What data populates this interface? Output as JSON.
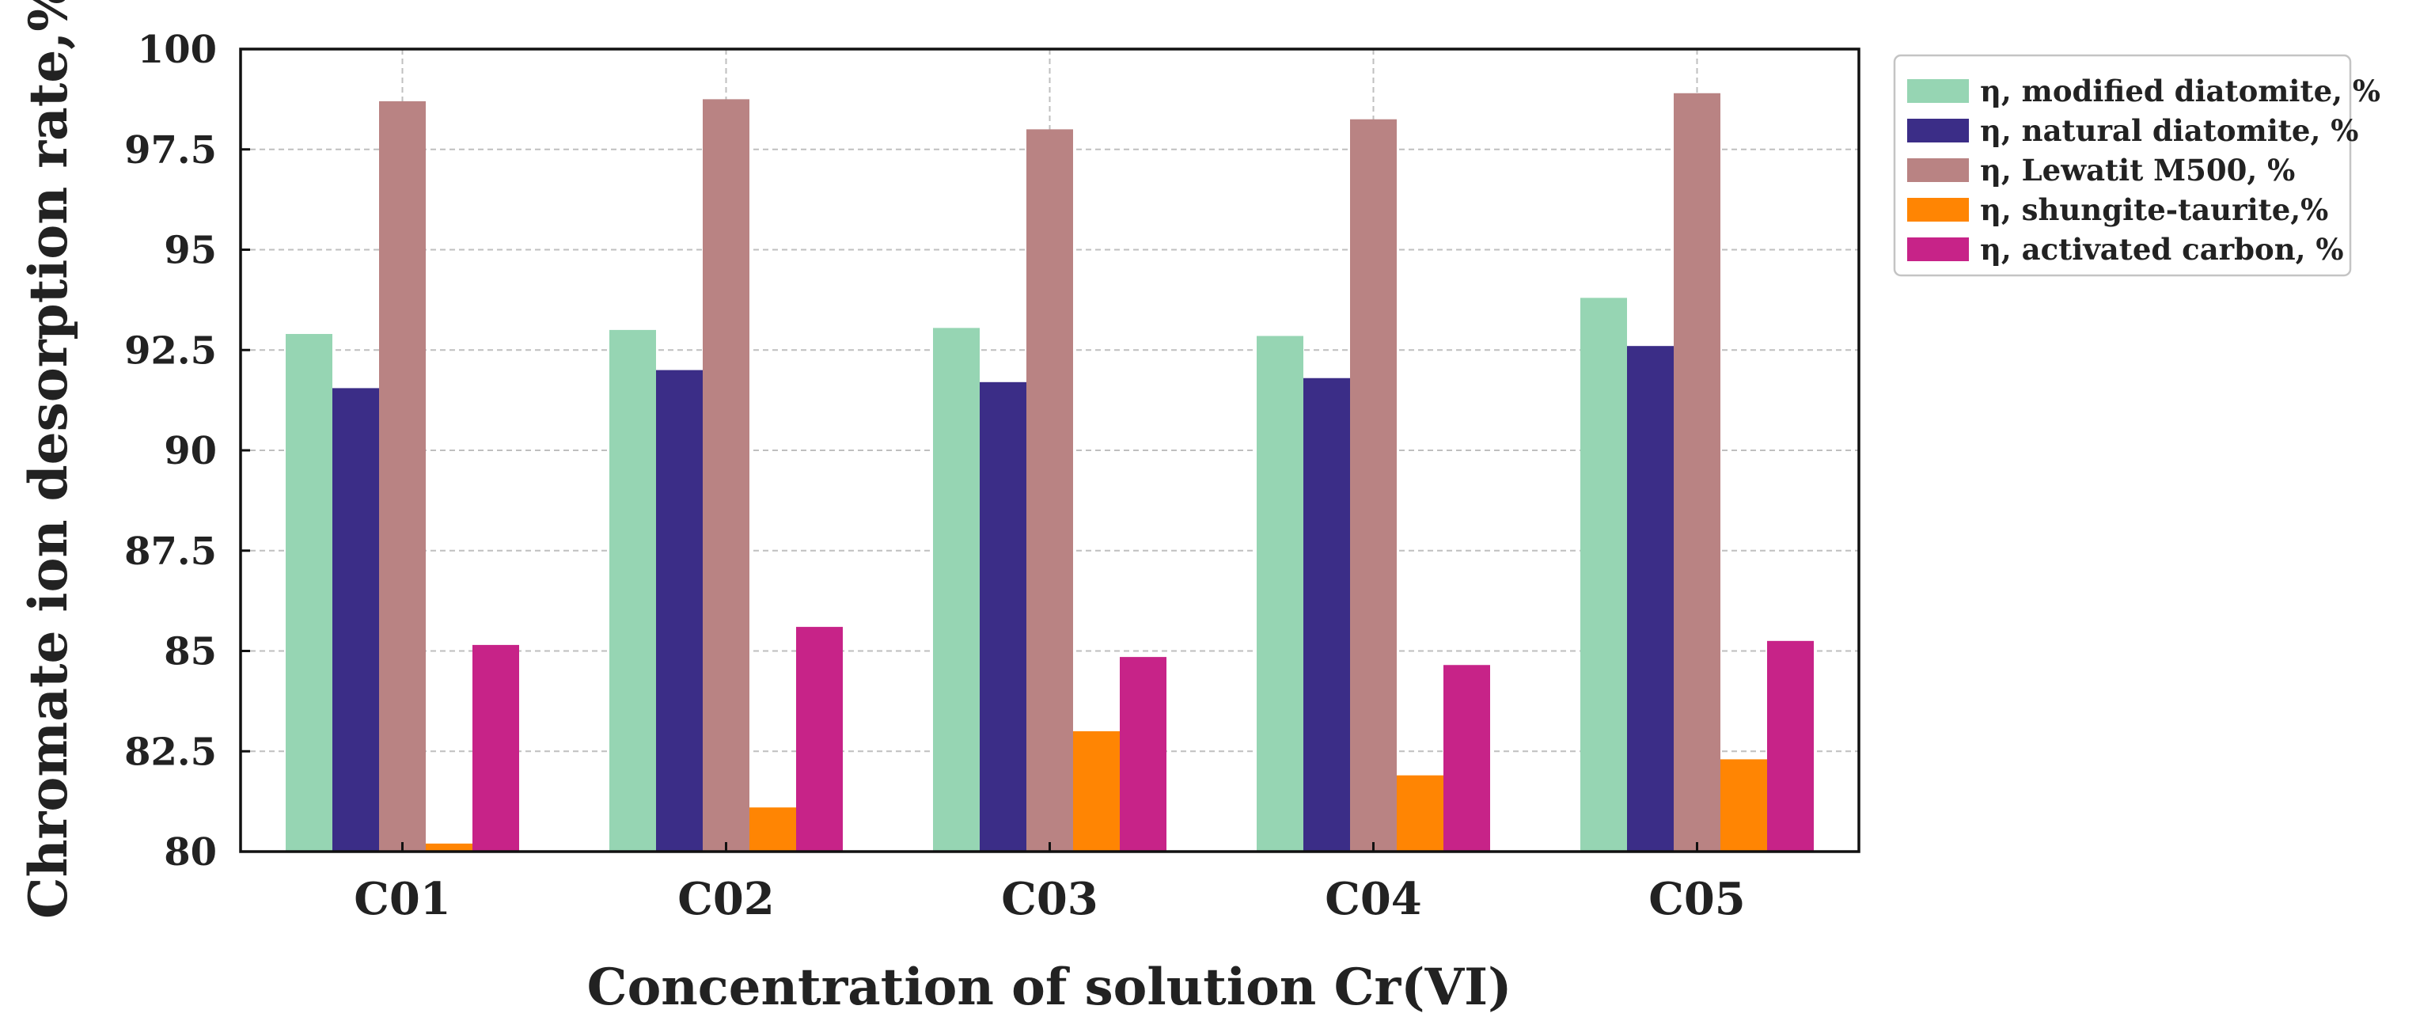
{
  "chart_data": {
    "type": "bar",
    "title": "",
    "xlabel": "Concentration of solution Cr(VI)",
    "ylabel": "Chromate ion desorption rate,%",
    "categories": [
      "C01",
      "C02",
      "C03",
      "C04",
      "C05"
    ],
    "ylim": [
      80,
      100
    ],
    "yticks": [
      80,
      82.5,
      85,
      87.5,
      90,
      92.5,
      95,
      97.5,
      100
    ],
    "ytick_labels": [
      "80",
      "82.5",
      "85",
      "87.5",
      "90",
      "92.5",
      "95",
      "97.5",
      "100"
    ],
    "grid": true,
    "legend_position": "outside-top-right",
    "series": [
      {
        "name": "η, modified diatomite, %",
        "color": "#96d5b3",
        "values": [
          92.9,
          93.0,
          93.05,
          92.85,
          93.8
        ]
      },
      {
        "name": "η, natural diatomite, %",
        "color": "#3b2d87",
        "values": [
          91.55,
          92.0,
          91.7,
          91.8,
          92.6
        ]
      },
      {
        "name": "η, Lewatit M500, %",
        "color": "#b98383",
        "values": [
          98.7,
          98.75,
          98.0,
          98.25,
          98.9
        ]
      },
      {
        "name": "η, shungite-taurite,%",
        "color": "#ff8503",
        "values": [
          80.2,
          81.1,
          83.0,
          81.9,
          82.3
        ]
      },
      {
        "name": "η, activated carbon, %",
        "color": "#c72388",
        "values": [
          85.15,
          85.6,
          84.85,
          84.65,
          85.25
        ]
      }
    ]
  }
}
